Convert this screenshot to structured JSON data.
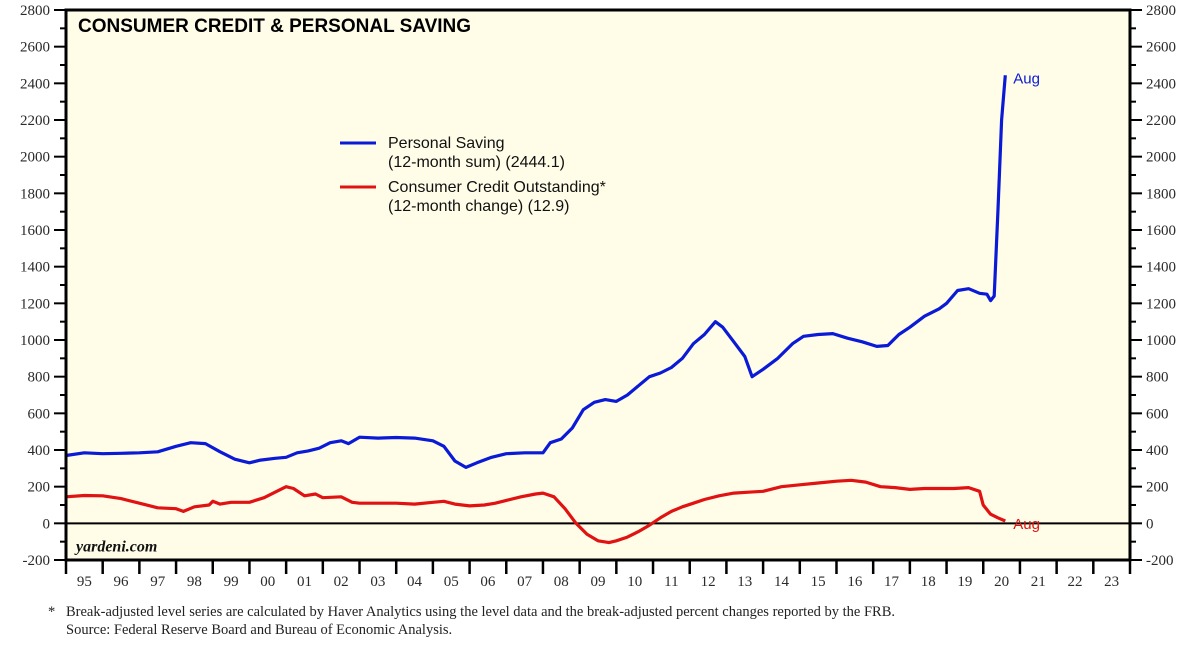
{
  "chart_data": {
    "type": "line",
    "title": "CONSUMER CREDIT & PERSONAL SAVING",
    "xlabel": "",
    "ylabel": "",
    "ylim": [
      -200,
      2800
    ],
    "yticks": [
      -200,
      0,
      200,
      400,
      600,
      800,
      1000,
      1200,
      1400,
      1600,
      1800,
      2000,
      2200,
      2400,
      2600,
      2800
    ],
    "yticks_labels": [
      "-200",
      "0",
      "200",
      "400",
      "600",
      "800",
      "1000",
      "1200",
      "1400",
      "1600",
      "1800",
      "2000",
      "2200",
      "2400",
      "2600",
      "2800"
    ],
    "xlim": [
      1995,
      2024
    ],
    "xtick_labels": [
      "95",
      "96",
      "97",
      "98",
      "99",
      "00",
      "01",
      "02",
      "03",
      "04",
      "05",
      "06",
      "07",
      "08",
      "09",
      "10",
      "11",
      "12",
      "13",
      "14",
      "15",
      "16",
      "17",
      "18",
      "19",
      "20",
      "21",
      "22",
      "23"
    ],
    "grid": false,
    "legend_position": "upper-center",
    "zero_line": true,
    "series": [
      {
        "name": "Personal Saving",
        "legend_line1": "Personal Saving",
        "legend_line2": "(12-month sum) (2444.1)",
        "color": "#0a1ad6",
        "end_label": "Aug",
        "latest_value": 2444.1,
        "x": [
          1995.0,
          1995.5,
          1996.0,
          1996.5,
          1997.0,
          1997.5,
          1998.0,
          1998.4,
          1998.8,
          1999.2,
          1999.6,
          2000.0,
          2000.3,
          2000.7,
          2001.0,
          2001.3,
          2001.6,
          2001.9,
          2002.2,
          2002.5,
          2002.7,
          2003.0,
          2003.5,
          2004.0,
          2004.5,
          2005.0,
          2005.3,
          2005.6,
          2005.9,
          2006.2,
          2006.6,
          2007.0,
          2007.5,
          2008.0,
          2008.2,
          2008.5,
          2008.8,
          2009.1,
          2009.4,
          2009.7,
          2010.0,
          2010.3,
          2010.6,
          2010.9,
          2011.2,
          2011.5,
          2011.8,
          2012.1,
          2012.4,
          2012.7,
          2012.9,
          2013.2,
          2013.5,
          2013.7,
          2014.0,
          2014.4,
          2014.8,
          2015.1,
          2015.5,
          2015.9,
          2016.3,
          2016.7,
          2017.1,
          2017.4,
          2017.7,
          2018.0,
          2018.4,
          2018.8,
          2019.0,
          2019.3,
          2019.6,
          2019.9,
          2020.1,
          2020.2,
          2020.3,
          2020.4,
          2020.5,
          2020.6
        ],
        "values": [
          370,
          385,
          380,
          382,
          385,
          390,
          420,
          440,
          435,
          390,
          350,
          330,
          345,
          355,
          360,
          385,
          395,
          410,
          440,
          450,
          435,
          470,
          465,
          468,
          465,
          450,
          420,
          340,
          305,
          330,
          360,
          380,
          385,
          385,
          440,
          460,
          520,
          620,
          660,
          675,
          665,
          700,
          750,
          800,
          820,
          850,
          900,
          980,
          1030,
          1100,
          1070,
          990,
          910,
          800,
          840,
          900,
          980,
          1020,
          1030,
          1035,
          1010,
          990,
          965,
          970,
          1030,
          1070,
          1130,
          1170,
          1200,
          1270,
          1280,
          1255,
          1250,
          1215,
          1240,
          1700,
          2200,
          2444
        ]
      },
      {
        "name": "Consumer Credit Outstanding*",
        "legend_line1": "Consumer Credit Outstanding*",
        "legend_line2": "(12-month change) (12.9)",
        "color": "#e01212",
        "end_label": "Aug",
        "latest_value": 12.9,
        "x": [
          1995.0,
          1995.5,
          1996.0,
          1996.5,
          1997.0,
          1997.5,
          1998.0,
          1998.2,
          1998.5,
          1998.9,
          1999.0,
          1999.2,
          1999.5,
          2000.0,
          2000.4,
          2000.8,
          2001.0,
          2001.2,
          2001.5,
          2001.8,
          2002.0,
          2002.5,
          2002.8,
          2003.0,
          2003.5,
          2004.0,
          2004.5,
          2005.0,
          2005.3,
          2005.6,
          2006.0,
          2006.4,
          2006.7,
          2007.0,
          2007.4,
          2007.8,
          2008.0,
          2008.3,
          2008.6,
          2008.9,
          2009.2,
          2009.5,
          2009.8,
          2010.0,
          2010.3,
          2010.6,
          2010.9,
          2011.2,
          2011.5,
          2011.8,
          2012.1,
          2012.4,
          2012.8,
          2013.2,
          2013.6,
          2014.0,
          2014.5,
          2015.0,
          2015.5,
          2016.0,
          2016.4,
          2016.8,
          2017.2,
          2017.6,
          2018.0,
          2018.4,
          2018.8,
          2019.2,
          2019.6,
          2019.9,
          2020.0,
          2020.2,
          2020.4,
          2020.6
        ],
        "values": [
          145,
          152,
          150,
          135,
          110,
          85,
          80,
          65,
          90,
          100,
          120,
          105,
          115,
          115,
          140,
          180,
          200,
          190,
          150,
          160,
          140,
          145,
          115,
          110,
          110,
          110,
          105,
          115,
          120,
          105,
          95,
          100,
          110,
          125,
          145,
          160,
          165,
          145,
          80,
          0,
          -60,
          -95,
          -105,
          -95,
          -75,
          -45,
          -10,
          30,
          65,
          90,
          110,
          130,
          150,
          165,
          170,
          175,
          200,
          210,
          220,
          230,
          235,
          225,
          200,
          195,
          185,
          190,
          190,
          190,
          195,
          175,
          100,
          50,
          30,
          13
        ]
      }
    ]
  },
  "branding": {
    "site": "yardeni.com"
  },
  "footnote": {
    "marker": "*",
    "line1": "Break-adjusted level series are calculated by Haver Analytics using the level data and the break-adjusted percent changes reported by the FRB.",
    "line2": "Source: Federal Reserve Board and Bureau of Economic Analysis."
  }
}
